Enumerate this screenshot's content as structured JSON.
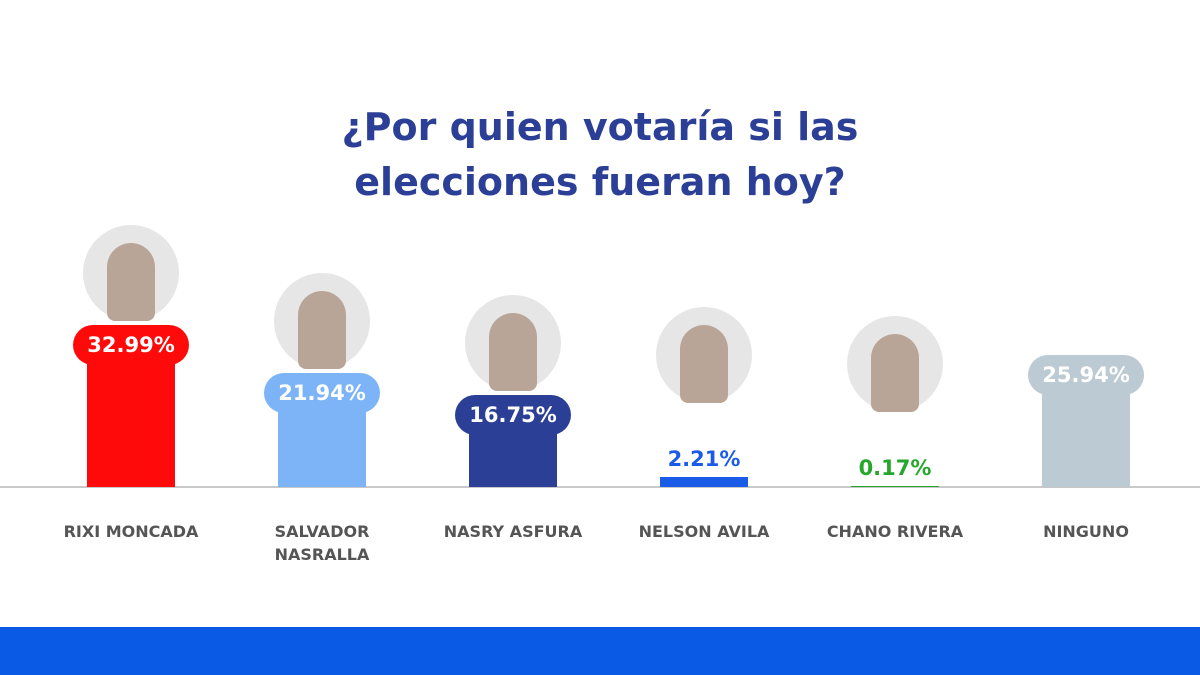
{
  "chart_data": {
    "type": "bar",
    "title": "¿Por quien votaría si las elecciones fueran hoy?",
    "categories": [
      "RIXI MONCADA",
      "SALVADOR NASRALLA",
      "NASRY ASFURA",
      "NELSON AVILA",
      "CHANO RIVERA",
      "NINGUNO"
    ],
    "values": [
      32.99,
      21.94,
      16.75,
      2.21,
      0.17,
      25.94
    ],
    "value_labels": [
      "32.99%",
      "21.94%",
      "16.75%",
      "2.21%",
      "0.17%",
      "25.94%"
    ],
    "colors": [
      "#ff0a0a",
      "#7db4f7",
      "#2c3f96",
      "#1a5ce8",
      "#26a62b",
      "#bccad3"
    ]
  }
}
